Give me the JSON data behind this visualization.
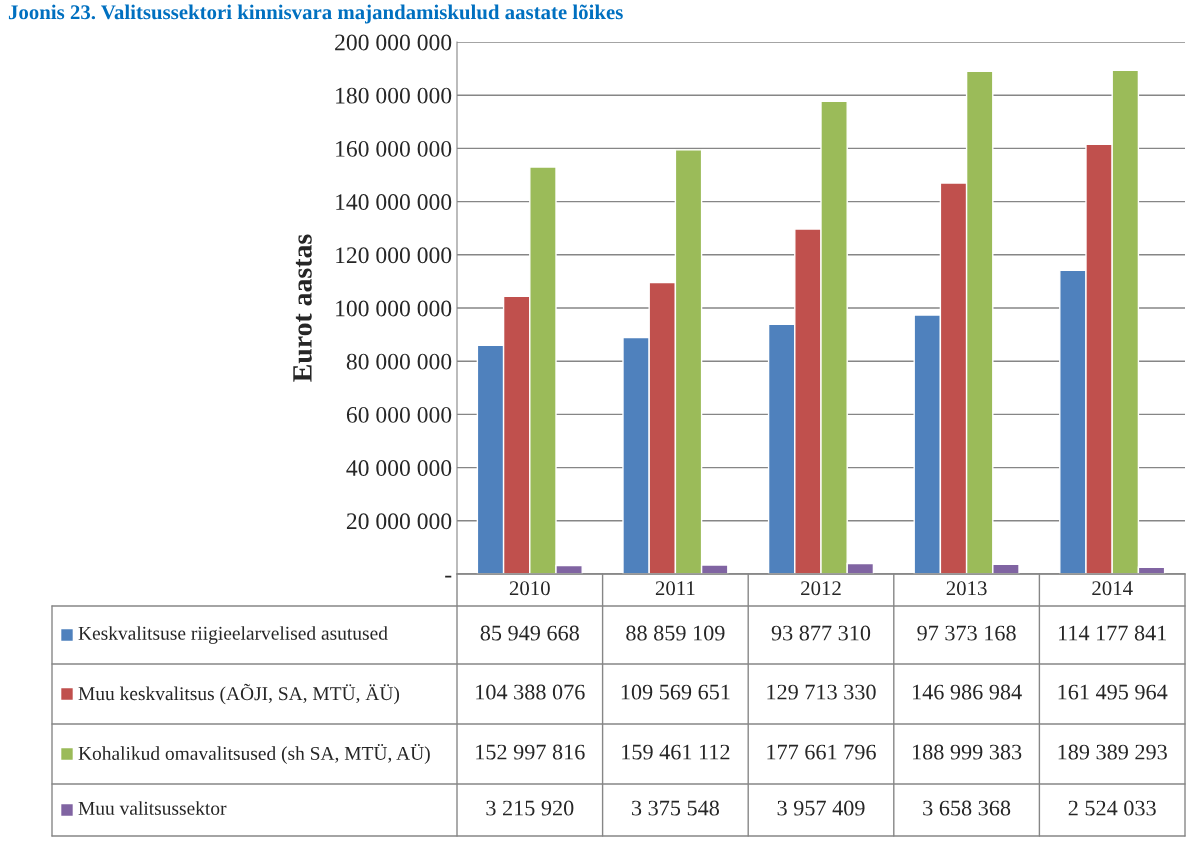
{
  "chart_data": {
    "type": "bar",
    "title": "Joonis 23. Valitsussektori kinnisvara majandamiskulud aastate lõikes",
    "ylabel": "Eurot aastas",
    "categories": [
      "2010",
      "2011",
      "2012",
      "2013",
      "2014"
    ],
    "series": [
      {
        "name": "Keskvalitsuse riigieelarvelised asutused",
        "color": "#4f81bd",
        "values": [
          85949668,
          88859109,
          93877310,
          97373168,
          114177841
        ],
        "value_labels": [
          "85 949 668",
          "88 859 109",
          "93 877 310",
          "97 373 168",
          "114 177 841"
        ]
      },
      {
        "name": "Muu keskvalitsus (AÕJI, SA, MTÜ, ÄÜ)",
        "color": "#c0504d",
        "values": [
          104388076,
          109569651,
          129713330,
          146986984,
          161495964
        ],
        "value_labels": [
          "104 388 076",
          "109 569 651",
          "129 713 330",
          "146 986 984",
          "161 495 964"
        ]
      },
      {
        "name": "Kohalikud omavalitsused (sh SA, MTÜ, AÜ)",
        "color": "#9bbb59",
        "values": [
          152997816,
          159461112,
          177661796,
          188999383,
          189389293
        ],
        "value_labels": [
          "152 997 816",
          "159 461 112",
          "177 661 796",
          "188 999 383",
          "189 389 293"
        ]
      },
      {
        "name": "Muu valitsussektor",
        "color": "#8064a2",
        "values": [
          3215920,
          3375548,
          3957409,
          3658368,
          2524033
        ],
        "value_labels": [
          "3 215 920",
          "3 375 548",
          "3 957 409",
          "3 658 368",
          "2 524 033"
        ]
      }
    ],
    "ylim": [
      0,
      200000000
    ],
    "yticks": [
      {
        "value": 0,
        "label": "-"
      },
      {
        "value": 20000000,
        "label": "20 000 000"
      },
      {
        "value": 40000000,
        "label": "40 000 000"
      },
      {
        "value": 60000000,
        "label": "60 000 000"
      },
      {
        "value": 80000000,
        "label": "80 000 000"
      },
      {
        "value": 100000000,
        "label": "100 000 000"
      },
      {
        "value": 120000000,
        "label": "120 000 000"
      },
      {
        "value": 140000000,
        "label": "140 000 000"
      },
      {
        "value": 160000000,
        "label": "160 000 000"
      },
      {
        "value": 180000000,
        "label": "180 000 000"
      },
      {
        "value": 200000000,
        "label": "200 000 000"
      }
    ],
    "grid": "y",
    "tick_labels": "y",
    "legend": "bottom"
  }
}
